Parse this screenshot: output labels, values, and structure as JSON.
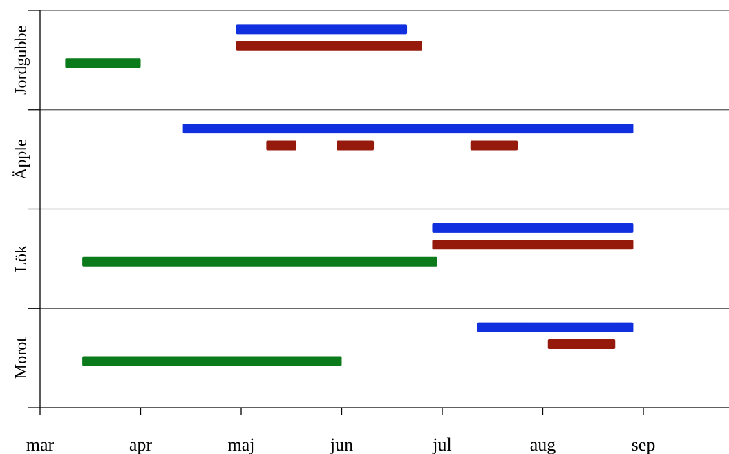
{
  "chart_data": {
    "type": "gantt",
    "x_ticks": [
      "mar",
      "apr",
      "maj",
      "jun",
      "jul",
      "aug",
      "sep"
    ],
    "categories": [
      "Jordgubbe",
      "Äpple",
      "Lök",
      "Morot"
    ],
    "xlim": [
      0,
      6.85
    ],
    "colors": {
      "green": "#0a7a1a",
      "blue": "#1030e0",
      "red": "#951a0c",
      "grid": "#555555"
    },
    "bars": [
      {
        "category": "Jordgubbe",
        "color": "blue",
        "segments": [
          [
            1.95,
            3.65
          ]
        ]
      },
      {
        "category": "Jordgubbe",
        "color": "red",
        "segments": [
          [
            1.95,
            3.8
          ]
        ]
      },
      {
        "category": "Jordgubbe",
        "color": "green",
        "segments": [
          [
            0.25,
            1.0
          ]
        ]
      },
      {
        "category": "Äpple",
        "color": "blue",
        "segments": [
          [
            1.42,
            5.9
          ]
        ]
      },
      {
        "category": "Äpple",
        "color": "red",
        "segments": [
          [
            2.25,
            2.55
          ],
          [
            2.95,
            3.32
          ],
          [
            4.28,
            4.75
          ]
        ]
      },
      {
        "category": "Lök",
        "color": "blue",
        "segments": [
          [
            3.9,
            5.9
          ]
        ]
      },
      {
        "category": "Lök",
        "color": "red",
        "segments": [
          [
            3.9,
            5.9
          ]
        ]
      },
      {
        "category": "Lök",
        "color": "green",
        "segments": [
          [
            0.42,
            3.95
          ]
        ]
      },
      {
        "category": "Morot",
        "color": "blue",
        "segments": [
          [
            4.35,
            5.9
          ]
        ]
      },
      {
        "category": "Morot",
        "color": "red",
        "segments": [
          [
            5.05,
            5.72
          ]
        ]
      },
      {
        "category": "Morot",
        "color": "green",
        "segments": [
          [
            0.42,
            3.0
          ]
        ]
      }
    ]
  }
}
